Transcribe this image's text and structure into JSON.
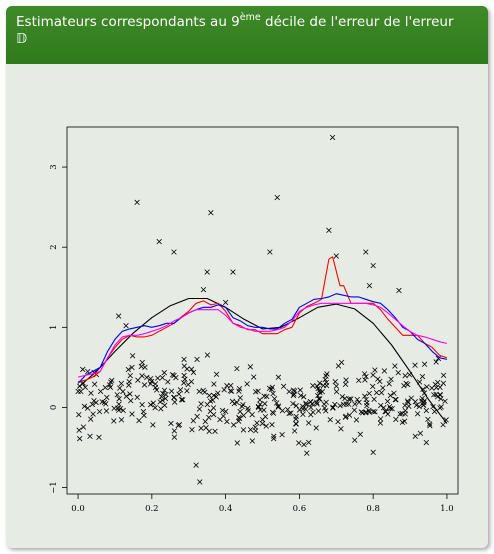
{
  "slide": {
    "title_pre": "Estimateurs correspondants au 9",
    "title_sup": "ème",
    "title_post": " décile de l'erreur de l'erreur",
    "title_symbol": "𝔻"
  },
  "colors": {
    "block_header": "#3a8524",
    "block_body": "#e6ece4",
    "truth": "#000000",
    "red_estimator": "#ff0000",
    "blue_estimator": "#0000ff",
    "magenta_estimator": "#ff00ff"
  },
  "chart_data": {
    "type": "scatter",
    "title": "",
    "xlabel": "",
    "ylabel": "",
    "xlim": [
      -0.03,
      1.03
    ],
    "ylim": [
      -1.08,
      3.5
    ],
    "x_ticks": [
      "0.0",
      "0.2",
      "0.4",
      "0.6",
      "0.8",
      "1.0"
    ],
    "y_ticks": [
      "−1",
      "0",
      "1",
      "2",
      "3"
    ],
    "marker": "x",
    "points_description_count": 500,
    "outliers": [
      {
        "x": 0.16,
        "y": 2.56
      },
      {
        "x": 0.22,
        "y": 2.07
      },
      {
        "x": 0.26,
        "y": 1.94
      },
      {
        "x": 0.36,
        "y": 2.43
      },
      {
        "x": 0.35,
        "y": 1.69
      },
      {
        "x": 0.42,
        "y": 1.69
      },
      {
        "x": 0.54,
        "y": 2.62
      },
      {
        "x": 0.52,
        "y": 1.94
      },
      {
        "x": 0.69,
        "y": 3.37
      },
      {
        "x": 0.68,
        "y": 2.21
      },
      {
        "x": 0.7,
        "y": 1.89
      },
      {
        "x": 0.78,
        "y": 1.94
      },
      {
        "x": 0.8,
        "y": 1.77
      },
      {
        "x": 0.79,
        "y": 1.52
      },
      {
        "x": 0.87,
        "y": 1.46
      },
      {
        "x": 0.34,
        "y": 1.47
      },
      {
        "x": 0.32,
        "y": -0.72
      },
      {
        "x": 0.33,
        "y": -0.93
      },
      {
        "x": 0.62,
        "y": -0.57
      },
      {
        "x": 0.8,
        "y": -0.56
      },
      {
        "x": 0.4,
        "y": 1.31
      },
      {
        "x": 0.11,
        "y": 1.14
      },
      {
        "x": 0.13,
        "y": 1.02
      }
    ],
    "series": [
      {
        "color": "#000000",
        "x": [
          0.0,
          0.05,
          0.1,
          0.15,
          0.2,
          0.25,
          0.3,
          0.35,
          0.4,
          0.45,
          0.5,
          0.55,
          0.6,
          0.65,
          0.7,
          0.75,
          0.8,
          0.85,
          0.9,
          0.95,
          1.0
        ],
        "y": [
          0.25,
          0.45,
          0.7,
          0.93,
          1.12,
          1.27,
          1.36,
          1.36,
          1.25,
          1.1,
          0.98,
          1.0,
          1.12,
          1.25,
          1.29,
          1.23,
          1.05,
          0.78,
          0.45,
          0.1,
          -0.2
        ]
      },
      {
        "color": "#ff0000",
        "x": [
          0.0,
          0.02,
          0.04,
          0.06,
          0.08,
          0.1,
          0.12,
          0.14,
          0.16,
          0.18,
          0.2,
          0.22,
          0.24,
          0.26,
          0.28,
          0.3,
          0.32,
          0.34,
          0.36,
          0.38,
          0.4,
          0.42,
          0.44,
          0.46,
          0.48,
          0.5,
          0.52,
          0.54,
          0.56,
          0.58,
          0.6,
          0.62,
          0.64,
          0.66,
          0.67,
          0.68,
          0.69,
          0.7,
          0.71,
          0.72,
          0.74,
          0.76,
          0.78,
          0.8,
          0.82,
          0.84,
          0.86,
          0.88,
          0.9,
          0.92,
          0.94,
          0.96,
          0.98,
          1.0
        ],
        "y": [
          0.32,
          0.34,
          0.38,
          0.45,
          0.62,
          0.75,
          0.85,
          0.9,
          0.88,
          0.88,
          0.9,
          0.95,
          1.0,
          1.05,
          1.13,
          1.2,
          1.3,
          1.33,
          1.28,
          1.3,
          1.2,
          1.05,
          1.02,
          0.97,
          0.97,
          0.92,
          0.92,
          0.92,
          0.97,
          1.0,
          1.18,
          1.26,
          1.3,
          1.35,
          1.6,
          1.85,
          1.88,
          1.7,
          1.52,
          1.52,
          1.3,
          1.3,
          1.3,
          1.3,
          1.22,
          1.1,
          1.0,
          0.9,
          0.9,
          0.9,
          0.8,
          0.75,
          0.65,
          0.62
        ]
      },
      {
        "color": "#0000ff",
        "x": [
          0.0,
          0.02,
          0.04,
          0.06,
          0.08,
          0.1,
          0.12,
          0.14,
          0.16,
          0.18,
          0.2,
          0.22,
          0.24,
          0.26,
          0.28,
          0.3,
          0.32,
          0.34,
          0.36,
          0.38,
          0.4,
          0.42,
          0.44,
          0.46,
          0.48,
          0.5,
          0.52,
          0.54,
          0.56,
          0.58,
          0.6,
          0.62,
          0.64,
          0.66,
          0.68,
          0.7,
          0.72,
          0.74,
          0.76,
          0.78,
          0.8,
          0.82,
          0.84,
          0.86,
          0.88,
          0.9,
          0.92,
          0.94,
          0.96,
          0.98,
          1.0
        ],
        "y": [
          0.3,
          0.4,
          0.45,
          0.5,
          0.7,
          0.85,
          0.95,
          0.98,
          1.0,
          1.02,
          1.0,
          1.02,
          1.05,
          1.05,
          1.12,
          1.18,
          1.22,
          1.25,
          1.25,
          1.28,
          1.25,
          1.12,
          1.08,
          1.02,
          1.0,
          1.0,
          0.98,
          0.98,
          1.05,
          1.1,
          1.25,
          1.3,
          1.35,
          1.36,
          1.38,
          1.42,
          1.4,
          1.38,
          1.38,
          1.35,
          1.32,
          1.3,
          1.22,
          1.12,
          1.0,
          0.95,
          0.85,
          0.8,
          0.7,
          0.62,
          0.6
        ]
      },
      {
        "color": "#ff00ff",
        "x": [
          0.0,
          0.02,
          0.04,
          0.06,
          0.08,
          0.1,
          0.12,
          0.14,
          0.16,
          0.18,
          0.2,
          0.22,
          0.24,
          0.26,
          0.28,
          0.3,
          0.32,
          0.34,
          0.36,
          0.38,
          0.4,
          0.42,
          0.44,
          0.46,
          0.48,
          0.5,
          0.52,
          0.54,
          0.56,
          0.58,
          0.6,
          0.62,
          0.64,
          0.66,
          0.68,
          0.7,
          0.72,
          0.74,
          0.76,
          0.78,
          0.8,
          0.82,
          0.84,
          0.86,
          0.88,
          0.9,
          0.92,
          0.94,
          0.96,
          0.98,
          1.0
        ],
        "y": [
          0.38,
          0.4,
          0.42,
          0.45,
          0.62,
          0.78,
          0.88,
          0.9,
          0.9,
          0.92,
          0.95,
          0.98,
          1.02,
          1.08,
          1.12,
          1.18,
          1.22,
          1.22,
          1.22,
          1.22,
          1.15,
          1.05,
          1.0,
          0.98,
          0.95,
          0.95,
          0.95,
          0.97,
          1.0,
          1.08,
          1.2,
          1.25,
          1.28,
          1.3,
          1.3,
          1.3,
          1.3,
          1.3,
          1.3,
          1.3,
          1.28,
          1.25,
          1.18,
          1.1,
          1.02,
          0.95,
          0.9,
          0.88,
          0.85,
          0.82,
          0.8
        ]
      }
    ]
  }
}
